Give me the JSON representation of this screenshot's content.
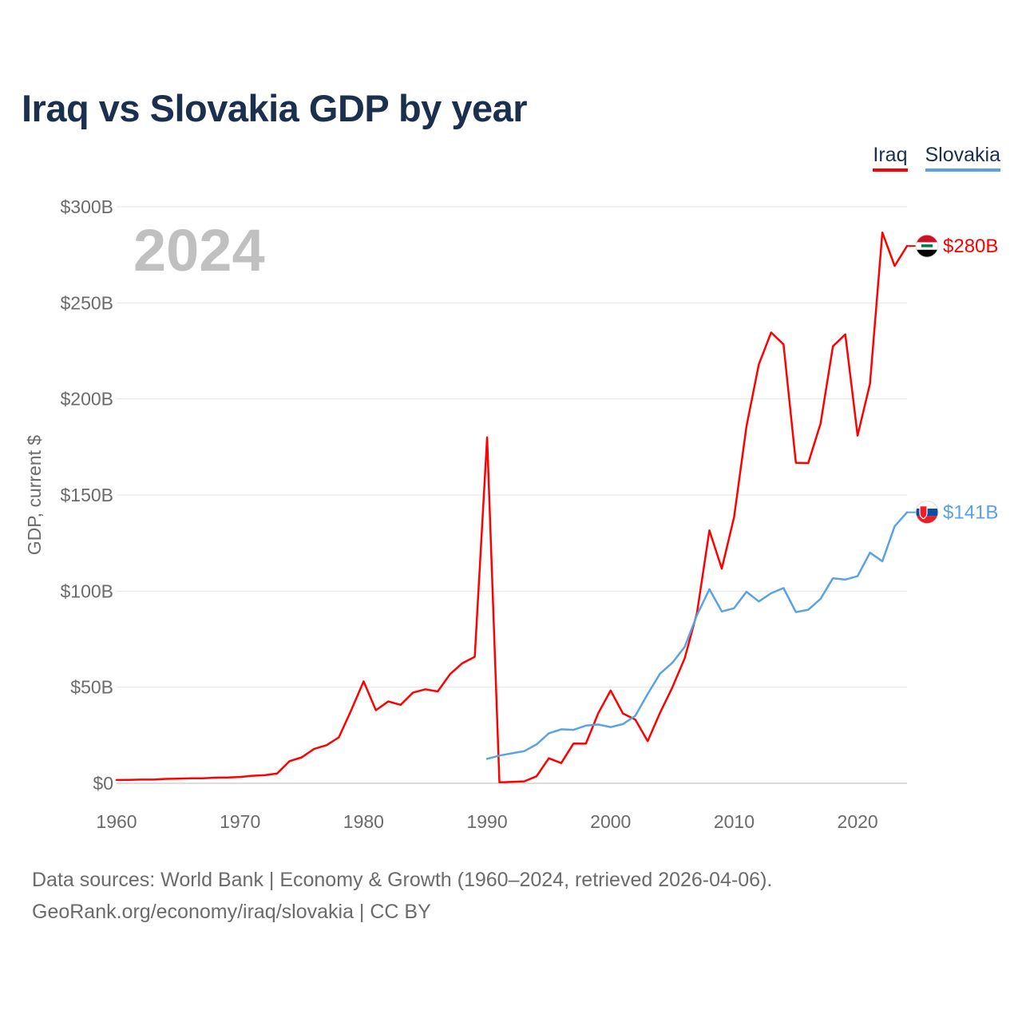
{
  "title": "Iraq vs Slovakia GDP by year",
  "year_watermark": "2024",
  "legend": [
    {
      "label": "Iraq",
      "color": "#ff0000"
    },
    {
      "label": "Slovakia",
      "color": "#5aa2e6"
    }
  ],
  "source": {
    "line1": "Data sources: World Bank | Economy & Growth (1960–2024, retrieved 2026-04-06).",
    "line2": "GeoRank.org/economy/iraq/slovakia | CC BY"
  },
  "chart_data": {
    "type": "line",
    "title": "Iraq vs Slovakia GDP by year",
    "xlabel": "",
    "ylabel": "GDP, current $",
    "xlim": [
      1960,
      2024
    ],
    "ylim": [
      0,
      300
    ],
    "y_unit": "billion USD",
    "x_ticks": [
      1960,
      1970,
      1980,
      1990,
      2000,
      2010,
      2020
    ],
    "x_tick_labels": [
      "1960",
      "1970",
      "1980",
      "1990",
      "2000",
      "2010",
      "2020"
    ],
    "y_ticks": [
      0,
      50,
      100,
      150,
      200,
      250,
      300
    ],
    "y_tick_labels": [
      "$0",
      "$50B",
      "$100B",
      "$150B",
      "$200B",
      "$250B",
      "$300B"
    ],
    "grid": true,
    "legend_position": "top-right",
    "series": [
      {
        "name": "Iraq",
        "color": "#ff0000",
        "end_label": "$280B",
        "x": [
          1960,
          1961,
          1962,
          1963,
          1964,
          1965,
          1966,
          1967,
          1968,
          1969,
          1970,
          1971,
          1972,
          1973,
          1974,
          1975,
          1976,
          1977,
          1978,
          1979,
          1980,
          1981,
          1982,
          1983,
          1984,
          1985,
          1986,
          1987,
          1988,
          1989,
          1990,
          1991,
          1992,
          1993,
          1994,
          1995,
          1996,
          1997,
          1998,
          1999,
          2000,
          2001,
          2002,
          2003,
          2004,
          2005,
          2006,
          2007,
          2008,
          2009,
          2010,
          2011,
          2012,
          2013,
          2014,
          2015,
          2016,
          2017,
          2018,
          2019,
          2020,
          2021,
          2022,
          2023,
          2024
        ],
        "values": [
          1.7,
          1.8,
          1.9,
          1.9,
          2.3,
          2.4,
          2.6,
          2.6,
          2.9,
          3.0,
          3.3,
          3.9,
          4.2,
          5.1,
          11.5,
          13.5,
          17.9,
          19.8,
          23.9,
          38.0,
          53.0,
          38.0,
          42.6,
          40.8,
          47.2,
          48.9,
          47.8,
          56.8,
          62.5,
          65.8,
          180.0,
          0.5,
          0.7,
          1.0,
          3.6,
          13.0,
          10.5,
          20.7,
          20.6,
          36.5,
          48.3,
          36.3,
          33.1,
          21.9,
          36.6,
          49.9,
          65.1,
          88.8,
          131.6,
          111.7,
          138.5,
          185.7,
          218.0,
          234.6,
          228.4,
          166.8,
          166.6,
          187.2,
          227.4,
          233.6,
          180.9,
          207.9,
          286.6,
          269.2,
          279.6
        ]
      },
      {
        "name": "Slovakia",
        "color": "#5aa2e6",
        "end_label": "$141B",
        "x": [
          1990,
          1991,
          1992,
          1993,
          1994,
          1995,
          1996,
          1997,
          1998,
          1999,
          2000,
          2001,
          2002,
          2003,
          2004,
          2005,
          2006,
          2007,
          2008,
          2009,
          2010,
          2011,
          2012,
          2013,
          2014,
          2015,
          2016,
          2017,
          2018,
          2019,
          2020,
          2021,
          2022,
          2023,
          2024
        ],
        "values": [
          12.7,
          14.4,
          15.6,
          16.7,
          20.2,
          26.0,
          28.1,
          27.8,
          30.0,
          30.6,
          29.2,
          30.8,
          35.1,
          46.5,
          57.0,
          62.7,
          71.0,
          87.6,
          101.0,
          89.4,
          91.1,
          99.7,
          94.6,
          98.9,
          101.6,
          89.1,
          90.3,
          96.0,
          106.7,
          106.0,
          107.8,
          120.0,
          115.5,
          133.7,
          141.0
        ]
      }
    ]
  }
}
